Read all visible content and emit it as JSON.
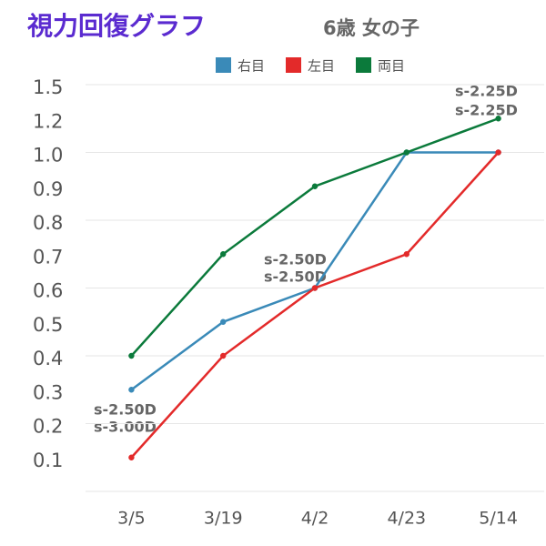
{
  "chart_data": {
    "type": "line",
    "title": "視力回復グラフ",
    "subtitle": "6歳 女の子",
    "categories": [
      "3/5",
      "3/19",
      "4/2",
      "4/23",
      "5/14"
    ],
    "series": [
      {
        "name": "右目",
        "color": "#3a8ab8",
        "values": [
          0.3,
          0.5,
          0.6,
          1,
          1
        ]
      },
      {
        "name": "左目",
        "color": "#e32a2a",
        "values": [
          0.1,
          0.4,
          0.6,
          0.7,
          1
        ]
      },
      {
        "name": "両目",
        "color": "#0b7a3b",
        "values": [
          0.4,
          0.7,
          0.9,
          1,
          1.2
        ]
      }
    ],
    "yscale": "ordinal",
    "yticks": [
      0.1,
      0.2,
      0.3,
      0.4,
      0.5,
      0.6,
      0.7,
      0.8,
      0.9,
      {
        "value": 1,
        "label": "1.0"
      },
      1.2,
      1.5
    ],
    "grid": true,
    "annotations": [
      "s-2.50D",
      "s-3.00D",
      "s-2.50D",
      "s-2.50D",
      "s-2.25D",
      "s-2.25D"
    ]
  }
}
